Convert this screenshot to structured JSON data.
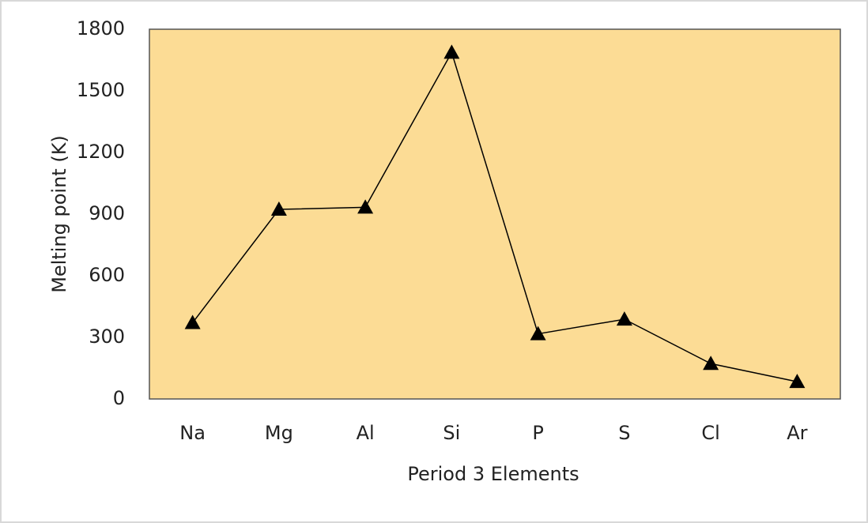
{
  "chart_data": {
    "type": "line",
    "xlabel": "Period 3 Elements",
    "ylabel": "Melting point (K)",
    "categories": [
      "Na",
      "Mg",
      "Al",
      "Si",
      "P",
      "S",
      "Cl",
      "Ar"
    ],
    "values": [
      371,
      923,
      933,
      1687,
      317,
      388,
      172,
      84
    ],
    "color": "#000000",
    "marker": "triangle",
    "background": "#fcdc95",
    "ylim": [
      0,
      1800
    ],
    "yticks": [
      0,
      300,
      600,
      900,
      1200,
      1500,
      1800
    ],
    "grid": false
  }
}
